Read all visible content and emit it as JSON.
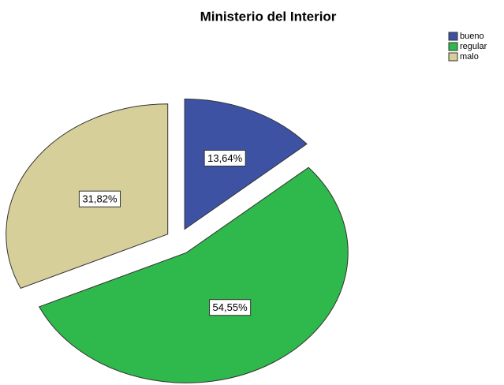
{
  "chart_data": {
    "type": "pie",
    "title": "Ministerio del Interior",
    "categories": [
      "bueno",
      "regular",
      "malo"
    ],
    "values": [
      13.64,
      54.55,
      31.82
    ],
    "value_labels": [
      "13,64%",
      "54,55%",
      "31,82%"
    ],
    "colors": [
      "#3d52a3",
      "#2fb84b",
      "#d6cf9a"
    ],
    "legend": "top-right"
  }
}
